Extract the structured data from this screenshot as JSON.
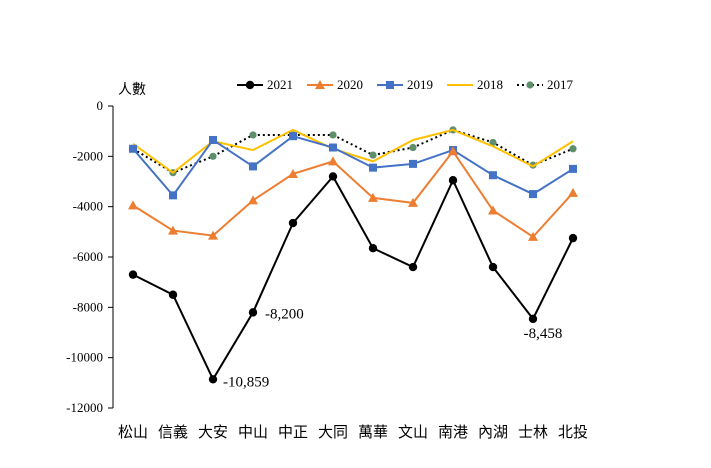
{
  "chart_data": {
    "type": "line",
    "ylabel": "人數",
    "ylim": [
      -12000,
      0
    ],
    "yticks": [
      0,
      -2000,
      -4000,
      -6000,
      -8000,
      -10000,
      -12000
    ],
    "ytick_labels": [
      "0",
      "-2000",
      "-4000",
      "-6000",
      "-8000",
      "-10000",
      "-12000"
    ],
    "categories": [
      "松山",
      "信義",
      "大安",
      "中山",
      "中正",
      "大同",
      "萬華",
      "文山",
      "南港",
      "內湖",
      "士林",
      "北投"
    ],
    "legend_position": "top",
    "grid": false,
    "series": [
      {
        "name": "2021",
        "color": "#000000",
        "marker": "circle",
        "dash": false,
        "values": [
          -6700,
          -7500,
          -10859,
          -8200,
          -4650,
          -2800,
          -5650,
          -6400,
          -2950,
          -6400,
          -8458,
          -5250
        ]
      },
      {
        "name": "2020",
        "color": "#ED7D31",
        "marker": "triangle",
        "dash": false,
        "values": [
          -3950,
          -4950,
          -5150,
          -3750,
          -2700,
          -2200,
          -3650,
          -3850,
          -1800,
          -4150,
          -5200,
          -3450
        ]
      },
      {
        "name": "2019",
        "color": "#4472C4",
        "marker": "square",
        "dash": false,
        "values": [
          -1700,
          -3550,
          -1350,
          -2400,
          -1200,
          -1650,
          -2450,
          -2300,
          -1750,
          -2750,
          -3500,
          -2500
        ]
      },
      {
        "name": "2018",
        "color": "#FFC000",
        "marker": "none",
        "dash": false,
        "values": [
          -1500,
          -2650,
          -1400,
          -1750,
          -950,
          -1700,
          -2200,
          -1350,
          -950,
          -1600,
          -2400,
          -1400
        ]
      },
      {
        "name": "2017",
        "color": "#000000",
        "marker": "dot",
        "marker_color": "#5F8F6A",
        "dash": true,
        "values": [
          -1700,
          -2650,
          -2000,
          -1150,
          -1150,
          -1150,
          -1950,
          -1650,
          -950,
          -1450,
          -2350,
          -1700
        ]
      }
    ],
    "annotations": [
      {
        "text": "-10,859",
        "series": "2021",
        "category": "大安"
      },
      {
        "text": "-8,200",
        "series": "2021",
        "category": "中山"
      },
      {
        "text": "-8,458",
        "series": "2021",
        "category": "士林"
      }
    ]
  }
}
